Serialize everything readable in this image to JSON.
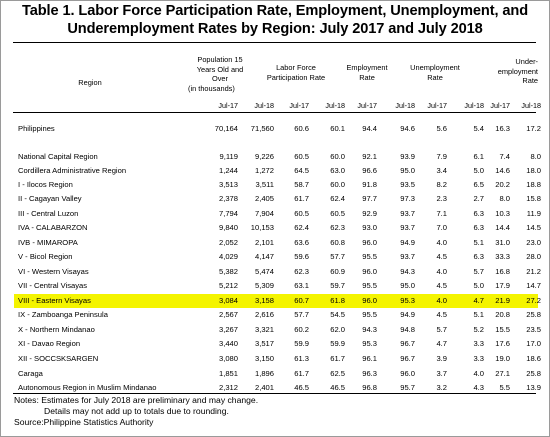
{
  "title_line1": "Table 1. Labor Force Participation Rate, Employment, Unemployment, and",
  "title_line2": "Underemployment Rates by Region: July 2017 and July 2018",
  "headers": {
    "region": "Region",
    "population_1": "Population 15",
    "population_2": "Years Old and",
    "population_3": "Over",
    "population_4": "(in thousands)",
    "lfpr_1": "Labor Force",
    "lfpr_2": "Participation Rate",
    "emp_1": "Employment",
    "emp_2": "Rate",
    "unemp_1": "Unemployment",
    "unemp_2": "Rate",
    "under_1": "Under-",
    "under_2": "employment",
    "under_3": "Rate"
  },
  "sub_headers": [
    "Jul-17",
    "Jul-18",
    "Jul-17",
    "Jul-18",
    "Jul-17",
    "Jul-18",
    "Jul-17",
    "Jul-18",
    "Jul-17",
    "Jul-18"
  ],
  "highlight_color": "#f4f400",
  "rows": [
    {
      "name": "Philippines",
      "values": [
        "70,164",
        "71,560",
        "60.6",
        "60.1",
        "94.4",
        "94.6",
        "5.6",
        "5.4",
        "16.3",
        "17.2"
      ]
    },
    {
      "name": "National Capital Region",
      "values": [
        "9,119",
        "9,226",
        "60.5",
        "60.0",
        "92.1",
        "93.9",
        "7.9",
        "6.1",
        "7.4",
        "8.0"
      ]
    },
    {
      "name": "Cordillera Administrative Region",
      "values": [
        "1,244",
        "1,272",
        "64.5",
        "63.0",
        "96.6",
        "95.0",
        "3.4",
        "5.0",
        "14.6",
        "18.0"
      ]
    },
    {
      "name": "I - Ilocos Region",
      "values": [
        "3,513",
        "3,511",
        "58.7",
        "60.0",
        "91.8",
        "93.5",
        "8.2",
        "6.5",
        "20.2",
        "18.8"
      ]
    },
    {
      "name": "II - Cagayan Valley",
      "values": [
        "2,378",
        "2,405",
        "61.7",
        "62.4",
        "97.7",
        "97.3",
        "2.3",
        "2.7",
        "8.0",
        "15.8"
      ]
    },
    {
      "name": "III - Central Luzon",
      "values": [
        "7,794",
        "7,904",
        "60.5",
        "60.5",
        "92.9",
        "93.7",
        "7.1",
        "6.3",
        "10.3",
        "11.9"
      ]
    },
    {
      "name": "IVA - CALABARZON",
      "values": [
        "9,840",
        "10,153",
        "62.4",
        "62.3",
        "93.0",
        "93.7",
        "7.0",
        "6.3",
        "14.4",
        "14.5"
      ]
    },
    {
      "name": "IVB - MIMAROPA",
      "values": [
        "2,052",
        "2,101",
        "63.6",
        "60.8",
        "96.0",
        "94.9",
        "4.0",
        "5.1",
        "31.0",
        "23.0"
      ]
    },
    {
      "name": "V - Bicol Region",
      "values": [
        "4,029",
        "4,147",
        "59.6",
        "57.7",
        "95.5",
        "93.7",
        "4.5",
        "6.3",
        "33.3",
        "28.0"
      ]
    },
    {
      "name": "VI - Western Visayas",
      "values": [
        "5,382",
        "5,474",
        "62.3",
        "60.9",
        "96.0",
        "94.3",
        "4.0",
        "5.7",
        "16.8",
        "21.2"
      ]
    },
    {
      "name": "VII - Central Visayas",
      "values": [
        "5,212",
        "5,309",
        "63.1",
        "59.7",
        "95.5",
        "95.0",
        "4.5",
        "5.0",
        "17.9",
        "14.7"
      ]
    },
    {
      "name": "VIII - Eastern Visayas",
      "values": [
        "3,084",
        "3,158",
        "60.7",
        "61.8",
        "96.0",
        "95.3",
        "4.0",
        "4.7",
        "21.9",
        "27.2"
      ],
      "highlight": true
    },
    {
      "name": "IX - Zamboanga Peninsula",
      "values": [
        "2,567",
        "2,616",
        "57.7",
        "54.5",
        "95.5",
        "94.9",
        "4.5",
        "5.1",
        "20.8",
        "25.8"
      ]
    },
    {
      "name": "X - Northern Mindanao",
      "values": [
        "3,267",
        "3,321",
        "60.2",
        "62.0",
        "94.3",
        "94.8",
        "5.7",
        "5.2",
        "15.5",
        "23.5"
      ]
    },
    {
      "name": "XI - Davao Region",
      "values": [
        "3,440",
        "3,517",
        "59.9",
        "59.9",
        "95.3",
        "96.7",
        "4.7",
        "3.3",
        "17.6",
        "17.0"
      ]
    },
    {
      "name": "XII - SOCCSKSARGEN",
      "values": [
        "3,080",
        "3,150",
        "61.3",
        "61.7",
        "96.1",
        "96.7",
        "3.9",
        "3.3",
        "19.0",
        "18.6"
      ]
    },
    {
      "name": "Caraga",
      "values": [
        "1,851",
        "1,896",
        "61.7",
        "62.5",
        "96.3",
        "96.0",
        "3.7",
        "4.0",
        "27.1",
        "25.8"
      ]
    },
    {
      "name": "Autonomous Region in Muslim Mindanao",
      "values": [
        "2,312",
        "2,401",
        "46.5",
        "46.5",
        "96.8",
        "95.7",
        "3.2",
        "4.3",
        "5.5",
        "13.9"
      ]
    }
  ],
  "notes": {
    "line1": "Notes: Estimates for July 2018 are preliminary and may change.",
    "line2": "Details may not add up to totals due to rounding.",
    "source": "Source:Philippine Statistics Authority"
  }
}
